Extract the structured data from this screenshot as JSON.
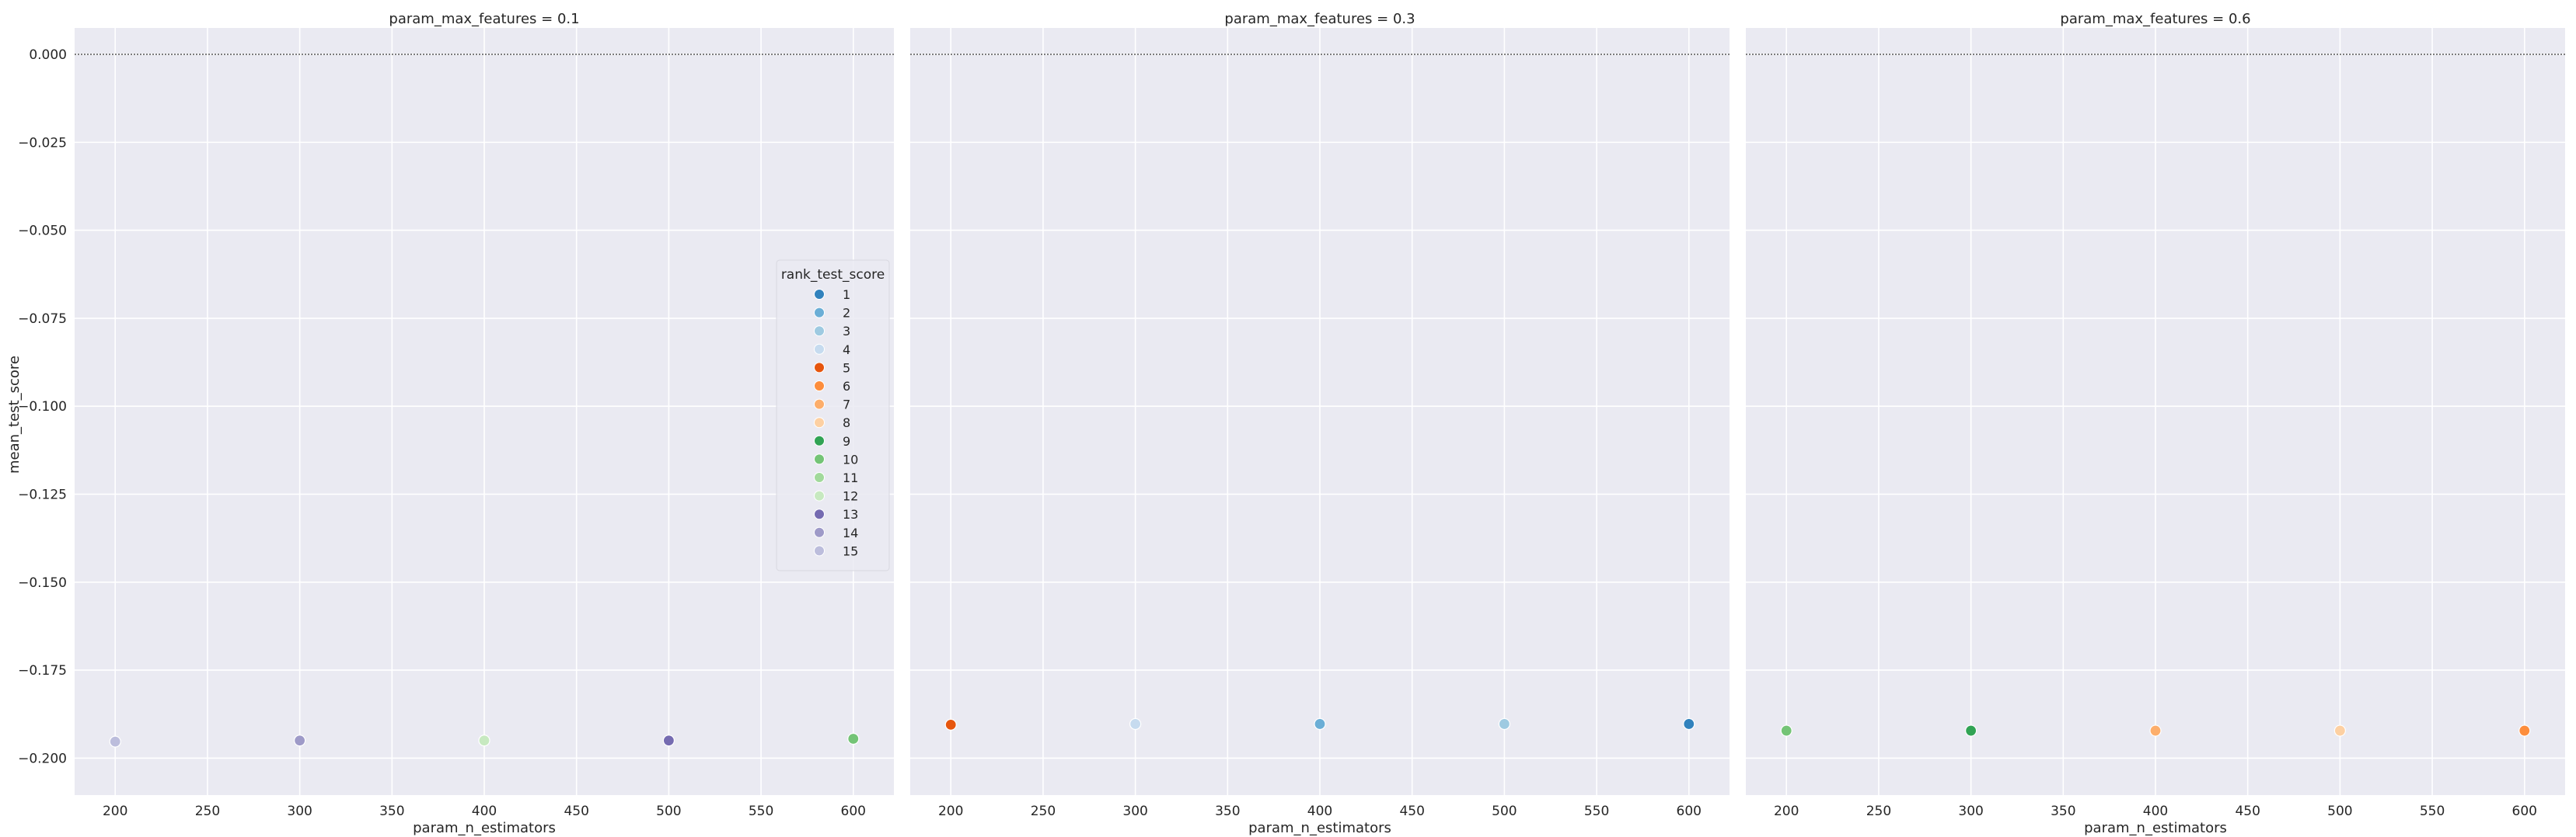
{
  "chart_data": {
    "type": "scatter",
    "y_label": "mean_test_score",
    "x_label": "param_n_estimators",
    "xlim": [
      178,
      622
    ],
    "ylim": [
      -0.2105,
      0.0075
    ],
    "x_ticks": [
      200,
      250,
      300,
      350,
      400,
      450,
      500,
      550,
      600
    ],
    "x_tick_labels": [
      "200",
      "250",
      "300",
      "350",
      "400",
      "450",
      "500",
      "550",
      "600"
    ],
    "y_ticks": [
      0.0,
      -0.025,
      -0.05,
      -0.075,
      -0.1,
      -0.125,
      -0.15,
      -0.175,
      -0.2
    ],
    "y_tick_labels": [
      "0.000",
      "−0.025",
      "−0.050",
      "−0.075",
      "−0.100",
      "−0.125",
      "−0.150",
      "−0.175",
      "−0.200"
    ],
    "reference_line_y": 0.0,
    "grid": true,
    "legend": {
      "title": "rank_test_score",
      "placement": "center-right of first panel",
      "entries": [
        {
          "label": "1",
          "color": "#3182bd"
        },
        {
          "label": "2",
          "color": "#6baed6"
        },
        {
          "label": "3",
          "color": "#9ecae1"
        },
        {
          "label": "4",
          "color": "#c6dbef"
        },
        {
          "label": "5",
          "color": "#e6550d"
        },
        {
          "label": "6",
          "color": "#fd8d3c"
        },
        {
          "label": "7",
          "color": "#fdae6b"
        },
        {
          "label": "8",
          "color": "#fdd0a2"
        },
        {
          "label": "9",
          "color": "#31a354"
        },
        {
          "label": "10",
          "color": "#74c476"
        },
        {
          "label": "11",
          "color": "#a1d99b"
        },
        {
          "label": "12",
          "color": "#c7e9c0"
        },
        {
          "label": "13",
          "color": "#756bb1"
        },
        {
          "label": "14",
          "color": "#9e9ac8"
        },
        {
          "label": "15",
          "color": "#bcbddc"
        }
      ]
    },
    "panels": [
      {
        "title": "param_max_features = 0.1",
        "points": [
          {
            "x": 200,
            "y": -0.1953,
            "rank": "15"
          },
          {
            "x": 300,
            "y": -0.195,
            "rank": "14"
          },
          {
            "x": 400,
            "y": -0.195,
            "rank": "12"
          },
          {
            "x": 500,
            "y": -0.195,
            "rank": "13"
          },
          {
            "x": 600,
            "y": -0.1945,
            "rank": "10"
          }
        ]
      },
      {
        "title": "param_max_features = 0.3",
        "points": [
          {
            "x": 200,
            "y": -0.1905,
            "rank": "5"
          },
          {
            "x": 300,
            "y": -0.1903,
            "rank": "4"
          },
          {
            "x": 400,
            "y": -0.1903,
            "rank": "2"
          },
          {
            "x": 500,
            "y": -0.1903,
            "rank": "3"
          },
          {
            "x": 600,
            "y": -0.1903,
            "rank": "1"
          }
        ]
      },
      {
        "title": "param_max_features = 0.6",
        "points": [
          {
            "x": 200,
            "y": -0.1922,
            "rank": "10"
          },
          {
            "x": 300,
            "y": -0.1922,
            "rank": "9"
          },
          {
            "x": 400,
            "y": -0.1922,
            "rank": "7"
          },
          {
            "x": 500,
            "y": -0.1922,
            "rank": "8"
          },
          {
            "x": 600,
            "y": -0.1922,
            "rank": "6"
          }
        ]
      }
    ]
  }
}
